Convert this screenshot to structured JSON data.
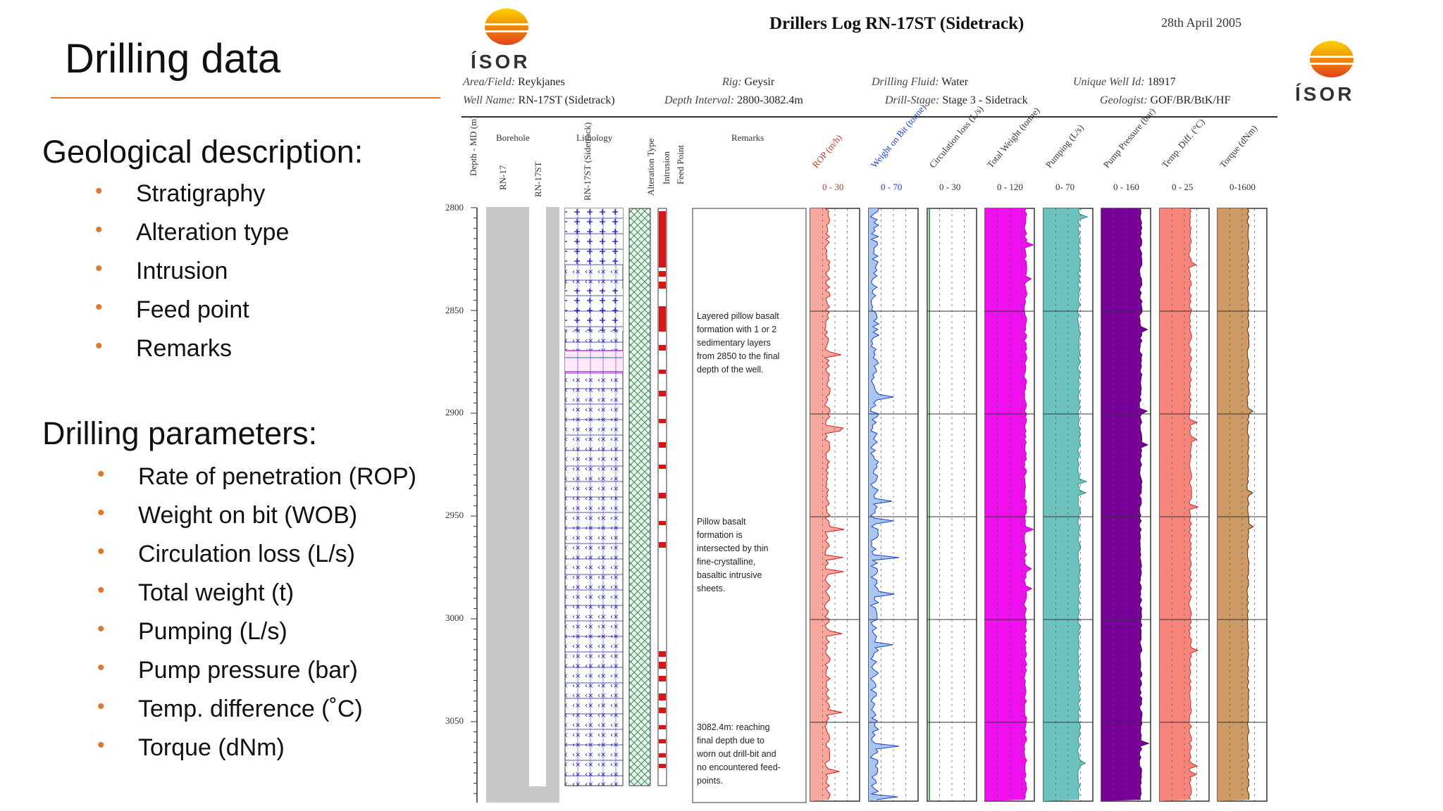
{
  "slide": {
    "title": "Drilling data",
    "geo_heading": "Geological  description:",
    "geo_items": [
      "Stratigraphy",
      "Alteration type",
      "Intrusion",
      "Feed point",
      "Remarks"
    ],
    "drill_heading": "Drilling parameters:",
    "drill_items": [
      "Rate of penetration (ROP)",
      "Weight on bit (WOB)",
      "Circulation loss (L/s)",
      "Total weight (t)",
      "Pumping (L/s)",
      "Pump pressure (bar)",
      "Temp. difference (˚C)",
      "Torque (dNm)"
    ]
  },
  "log": {
    "title": "Drillers Log      RN-17ST (Sidetrack)",
    "date": "28th April 2005",
    "logo_text": "ÍSOR",
    "area_label": "Area/Field:",
    "area_value": "Reykjanes",
    "well_label": "Well Name:",
    "well_value": "RN-17ST (Sidetrack)",
    "rig_label": "Rig:",
    "rig_value": "Geysir",
    "depth_label": "Depth Interval:",
    "depth_value": "2800-3082.4m",
    "fluid_label": "Drilling Fluid:",
    "fluid_value": "Water",
    "stage_label": "Drill-Stage:",
    "stage_value": "Stage 3 - Sidetrack",
    "uwi_label": "Unique Well Id:",
    "uwi_value": "18917",
    "geologist_label": "Geologist:",
    "geologist_value": "GOF/BR/BtK/HF",
    "col_depth": "Depth - MD (m)",
    "col_borehole": "Borehole",
    "col_rn17": "RN-17",
    "col_rn17st": "RN-17ST",
    "col_lithology": "Lithology",
    "col_lith_well": "RN-17ST (Sidetrack)",
    "col_alteration": "Alteration Type",
    "col_intrusion": "Intrusion",
    "col_feed": "Feed Point",
    "col_remarks": "Remarks",
    "param_labels": [
      "ROP (m/h)",
      "Weight on Bit (tonne)",
      "Circulation loss (L/s)",
      "Total Weight (tonne)",
      "Pumping (L/s)",
      "Pump Pressure (bar)",
      "Temp. Diff. (°C)",
      "Torque (dNm)"
    ],
    "param_scales": [
      "0 - 30",
      "0 - 70",
      "0 - 30",
      "0 - 120",
      "0- 70",
      "0 - 160",
      "0 - 25",
      "0-1600"
    ],
    "param_colors": [
      "#f8a79c",
      "#a9c6ef",
      "#ffffff",
      "#ee11ee",
      "#6cc3bd",
      "#770099",
      "#f7857b",
      "#cd9a66"
    ],
    "depth_ticks": [
      "2800",
      "2850",
      "2900",
      "2950",
      "3000",
      "3050"
    ],
    "remark1": "Layered pillow basalt\nformation with 1 or 2\nsedimentary layers\nfrom 2850 to the final\ndepth of the well.",
    "remark2": "Pillow basalt\nformation is\nintersected by thin\nfine-crystalline,\nbasaltic intrusive\nsheets.",
    "remark3": "3082.4m: reaching\nfinal depth due to\nworn out drill-bit and\nno encountered feed-\npoints."
  }
}
